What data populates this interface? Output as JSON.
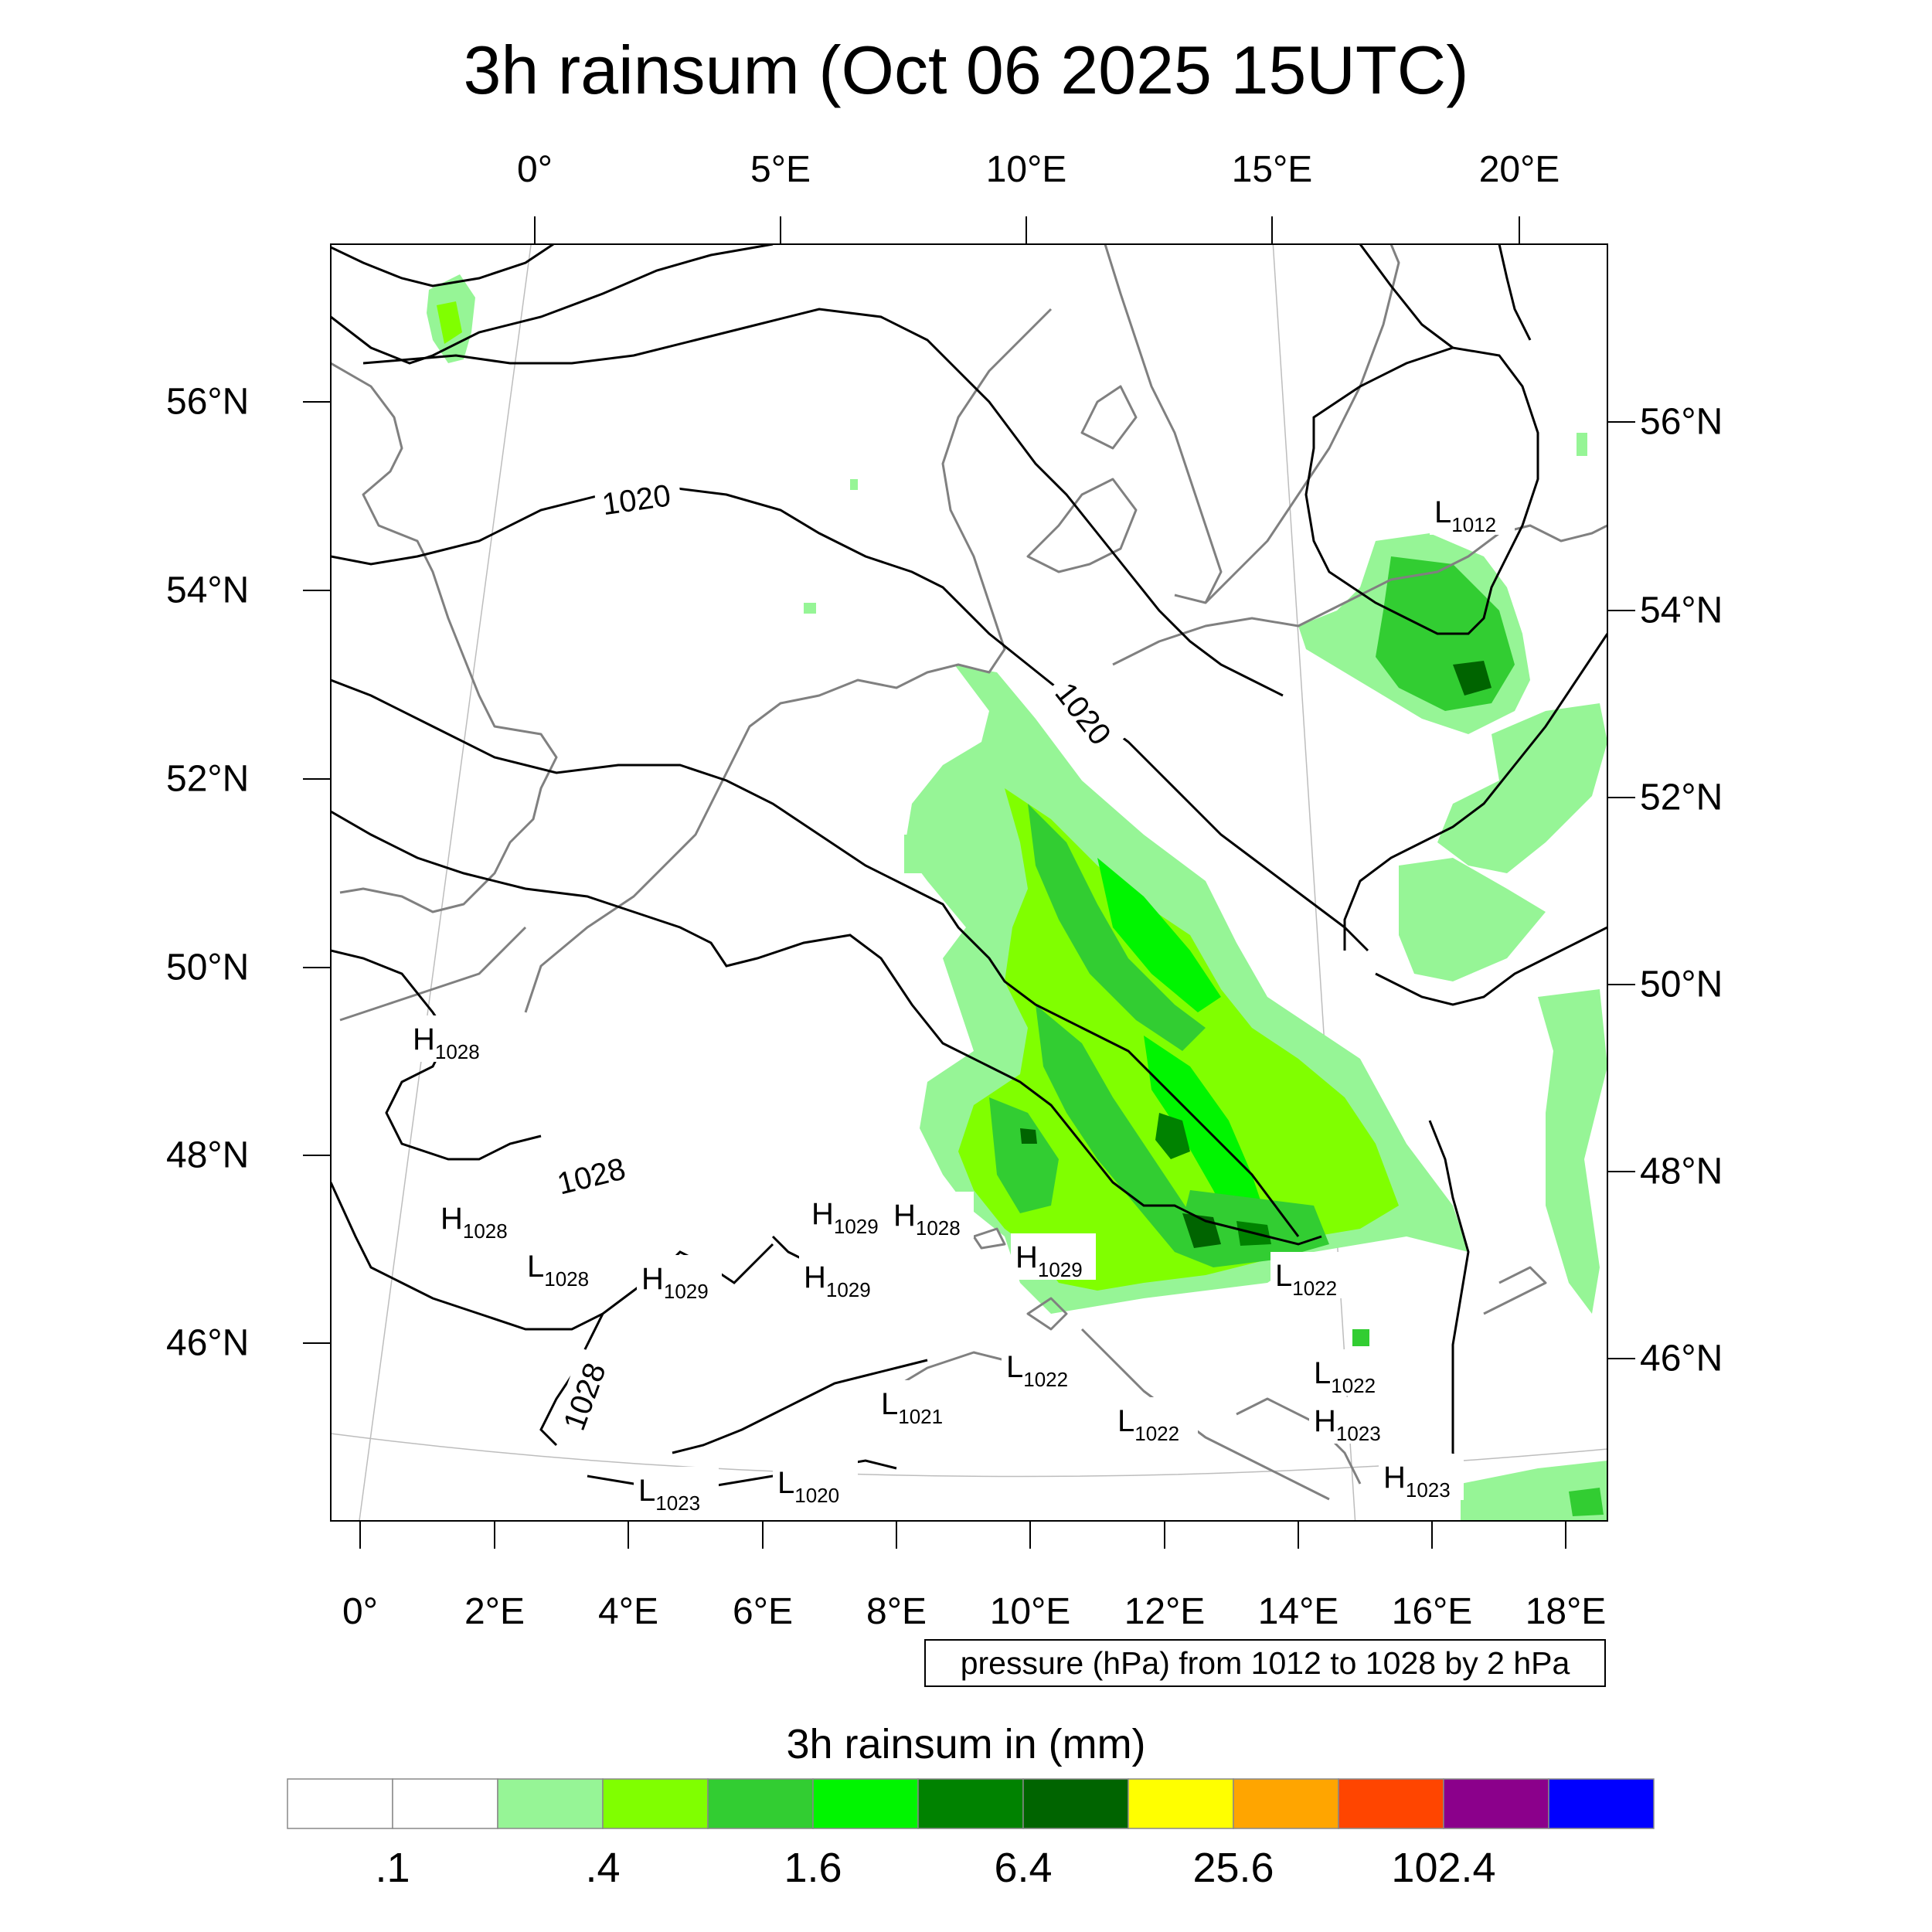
{
  "title": "3h rainsum (Oct 06 2025 15UTC)",
  "axes": {
    "top_lon_labels": [
      "0°",
      "5°E",
      "10°E",
      "15°E",
      "20°E"
    ],
    "bottom_lon_labels": [
      "0°",
      "2°E",
      "4°E",
      "6°E",
      "8°E",
      "10°E",
      "12°E",
      "14°E",
      "16°E",
      "18°E"
    ],
    "left_lat_labels": [
      "56°N",
      "54°N",
      "52°N",
      "50°N",
      "48°N",
      "46°N"
    ],
    "right_lat_labels": [
      "56°N",
      "54°N",
      "52°N",
      "50°N",
      "48°N",
      "46°N"
    ]
  },
  "pressure_note": "pressure (hPa) from 1012 to 1028 by 2 hPa",
  "colorbar": {
    "title": "3h rainsum in (mm)",
    "colors": [
      "#ffffff",
      "#ffffff",
      "#96f596",
      "#80ff00",
      "#32cd32",
      "#00f500",
      "#008200",
      "#006400",
      "#ffff00",
      "#ffa500",
      "#ff4500",
      "#8b008b",
      "#0000ff"
    ],
    "tick_labels": [
      ".1",
      ".4",
      "1.6",
      "6.4",
      "25.6",
      "102.4"
    ]
  },
  "contour_labels": [
    "1020",
    "1020",
    "1028",
    "1028"
  ],
  "pressure_centers": [
    {
      "type": "H",
      "value": "1028"
    },
    {
      "type": "H",
      "value": "1028"
    },
    {
      "type": "L",
      "value": "1028"
    },
    {
      "type": "H",
      "value": "1029"
    },
    {
      "type": "H",
      "value": "1029"
    },
    {
      "type": "H",
      "value": "1028"
    },
    {
      "type": "H",
      "value": "1029"
    },
    {
      "type": "H",
      "value": "1029"
    },
    {
      "type": "L",
      "value": "1022"
    },
    {
      "type": "L",
      "value": "1022"
    },
    {
      "type": "L",
      "value": "1021"
    },
    {
      "type": "L",
      "value": "1022"
    },
    {
      "type": "L",
      "value": "1022"
    },
    {
      "type": "H",
      "value": "1023"
    },
    {
      "type": "H",
      "value": "1023"
    },
    {
      "type": "L",
      "value": "1023"
    },
    {
      "type": "L",
      "value": "1020"
    },
    {
      "type": "L",
      "value": "1012"
    }
  ]
}
